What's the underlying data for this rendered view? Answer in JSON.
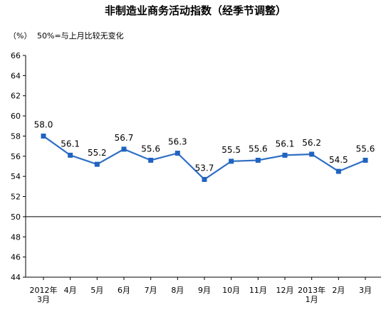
{
  "title": "非制造业商务活动指数（经季节调整）",
  "unit_label": "（%）",
  "note": "50%=与上月比较无变化",
  "colors": {
    "line": "#2f6fc4",
    "marker": "#2063c0",
    "axis": "#000000",
    "reference": "#000000"
  },
  "chart_data": {
    "type": "line",
    "title": "非制造业商务活动指数（经季节调整）",
    "xlabel": "",
    "ylabel": "（%）",
    "ylim": [
      44,
      66
    ],
    "yticks": [
      44,
      46,
      48,
      50,
      52,
      54,
      56,
      58,
      60,
      62,
      64,
      66
    ],
    "reference_line": 50,
    "grid": false,
    "categories": [
      "2012年\n3月",
      "4月",
      "5月",
      "6月",
      "7月",
      "8月",
      "9月",
      "10月",
      "11月",
      "12月",
      "2013年\n1月",
      "2月",
      "3月"
    ],
    "series": [
      {
        "values": [
          58.0,
          56.1,
          55.2,
          56.7,
          55.6,
          56.3,
          53.7,
          55.5,
          55.6,
          56.1,
          56.2,
          54.5,
          55.6
        ]
      }
    ],
    "data_labels": [
      "58.0",
      "56.1",
      "55.2",
      "56.7",
      "55.6",
      "56.3",
      "53.7",
      "55.5",
      "55.6",
      "56.1",
      "56.2",
      "54.5",
      "55.6"
    ]
  }
}
